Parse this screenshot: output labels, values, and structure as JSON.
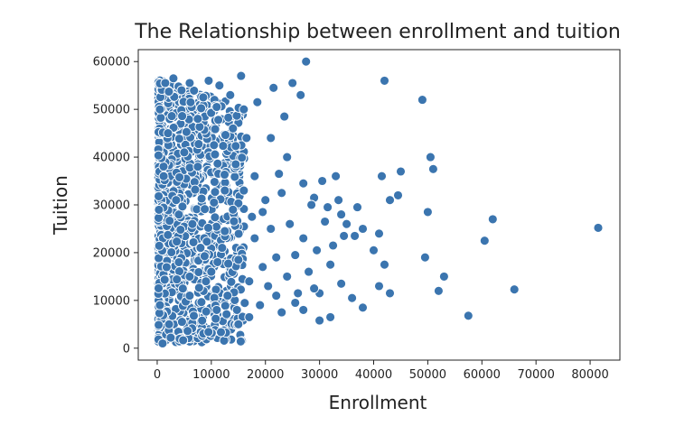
{
  "chart_data": {
    "type": "scatter",
    "title": "The Relationship between enrollment and tuition",
    "xlabel": "Enrollment",
    "ylabel": "Tuition",
    "xlim": [
      -3500,
      85500
    ],
    "ylim": [
      -2500,
      62500
    ],
    "xticks": [
      0,
      10000,
      20000,
      30000,
      40000,
      50000,
      60000,
      70000,
      80000
    ],
    "yticks": [
      0,
      10000,
      20000,
      30000,
      40000,
      50000,
      60000
    ],
    "grid": false,
    "marker_color": "#3b75af",
    "marker_edge_color": "#ffffff",
    "note_dense_region": "Hundreds of overlapping points fill the region x 0–15000 for y 1000–57000; representative points listed plus generated fill.",
    "points": [
      [
        81500,
        25200
      ],
      [
        66000,
        12300
      ],
      [
        62000,
        27000
      ],
      [
        60500,
        22500
      ],
      [
        57500,
        6800
      ],
      [
        53000,
        15000
      ],
      [
        52000,
        12000
      ],
      [
        51000,
        37500
      ],
      [
        50500,
        40000
      ],
      [
        50000,
        28500
      ],
      [
        49500,
        19000
      ],
      [
        49000,
        52000
      ],
      [
        45000,
        37000
      ],
      [
        44500,
        32000
      ],
      [
        43000,
        11500
      ],
      [
        43000,
        31000
      ],
      [
        42000,
        56000
      ],
      [
        42000,
        17500
      ],
      [
        41500,
        36000
      ],
      [
        41000,
        13000
      ],
      [
        41000,
        24000
      ],
      [
        40000,
        20500
      ],
      [
        38000,
        25000
      ],
      [
        37000,
        29500
      ],
      [
        36500,
        23500
      ],
      [
        35000,
        26000
      ],
      [
        34500,
        23500
      ],
      [
        34000,
        13500
      ],
      [
        33500,
        31000
      ],
      [
        33000,
        36000
      ],
      [
        32500,
        21500
      ],
      [
        32000,
        17500
      ],
      [
        31500,
        29500
      ],
      [
        31000,
        26500
      ],
      [
        30500,
        35000
      ],
      [
        30000,
        5800
      ],
      [
        30000,
        11500
      ],
      [
        29500,
        20500
      ],
      [
        29000,
        31500
      ],
      [
        28500,
        30000
      ],
      [
        28000,
        16000
      ],
      [
        27500,
        60000
      ],
      [
        27000,
        23000
      ],
      [
        27000,
        8000
      ],
      [
        26500,
        53000
      ],
      [
        26000,
        11500
      ],
      [
        25500,
        19500
      ],
      [
        25000,
        55500
      ],
      [
        24500,
        26000
      ],
      [
        24000,
        15000
      ],
      [
        23500,
        48500
      ],
      [
        23000,
        32500
      ],
      [
        23000,
        7500
      ],
      [
        22500,
        36500
      ],
      [
        22000,
        19000
      ],
      [
        21500,
        54500
      ],
      [
        21000,
        25000
      ],
      [
        20500,
        13000
      ],
      [
        20000,
        31000
      ],
      [
        19500,
        17000
      ],
      [
        19000,
        9000
      ],
      [
        18500,
        51500
      ],
      [
        18000,
        23000
      ],
      [
        17500,
        27500
      ],
      [
        17000,
        6500
      ],
      [
        16500,
        44000
      ],
      [
        16000,
        50000
      ],
      [
        15500,
        57000
      ],
      [
        15000,
        18500
      ],
      [
        15000,
        5000
      ],
      [
        14500,
        38500
      ],
      [
        14000,
        29000
      ],
      [
        13500,
        53000
      ],
      [
        13000,
        11000
      ],
      [
        12500,
        33000
      ],
      [
        12000,
        21000
      ],
      [
        11500,
        55000
      ],
      [
        11000,
        8000
      ],
      [
        10500,
        42500
      ],
      [
        10000,
        16000
      ],
      [
        38000,
        8500
      ],
      [
        36000,
        10500
      ],
      [
        34000,
        28000
      ],
      [
        32000,
        6500
      ],
      [
        29000,
        12500
      ],
      [
        27000,
        34500
      ],
      [
        25500,
        9500
      ],
      [
        24000,
        40000
      ],
      [
        22000,
        11000
      ],
      [
        21000,
        44000
      ],
      [
        19500,
        28500
      ],
      [
        18000,
        36000
      ],
      [
        17000,
        14000
      ],
      [
        16000,
        33000
      ],
      [
        14000,
        46000
      ],
      [
        12500,
        24500
      ],
      [
        11000,
        50500
      ],
      [
        10500,
        30500
      ],
      [
        9500,
        56000
      ],
      [
        8500,
        52500
      ],
      [
        1000,
        1000
      ],
      [
        2500,
        2200
      ],
      [
        1500,
        55500
      ],
      [
        3000,
        56500
      ],
      [
        500,
        50000
      ],
      [
        4500,
        54000
      ],
      [
        6000,
        55500
      ],
      [
        7500,
        48000
      ],
      [
        2000,
        45000
      ],
      [
        5000,
        41000
      ],
      [
        1200,
        36000
      ],
      [
        3500,
        31000
      ],
      [
        6500,
        26000
      ],
      [
        8000,
        21000
      ],
      [
        9000,
        14000
      ],
      [
        500,
        9000
      ],
      [
        2200,
        5000
      ],
      [
        4000,
        18000
      ],
      [
        6000,
        11000
      ],
      [
        7500,
        38000
      ]
    ]
  }
}
